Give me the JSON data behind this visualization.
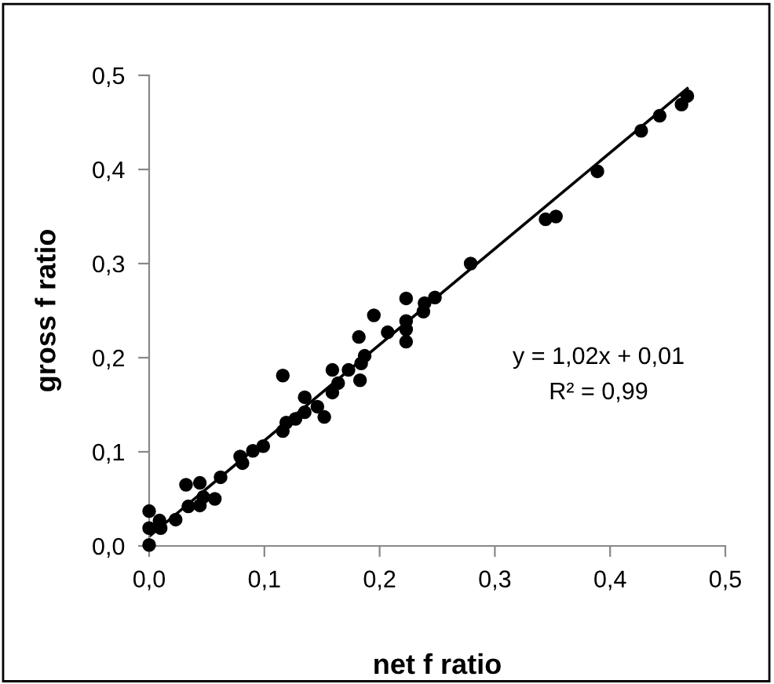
{
  "chart_data": {
    "type": "scatter",
    "xlabel": "net f ratio",
    "ylabel": "gross f ratio",
    "xlim": [
      0,
      0.5
    ],
    "ylim": [
      0,
      0.5
    ],
    "xticks": [
      {
        "value": 0,
        "label": "0,0"
      },
      {
        "value": 0.1,
        "label": "0,1"
      },
      {
        "value": 0.2,
        "label": "0,2"
      },
      {
        "value": 0.3,
        "label": "0,3"
      },
      {
        "value": 0.4,
        "label": "0,4"
      },
      {
        "value": 0.5,
        "label": "0,5"
      }
    ],
    "yticks": [
      {
        "value": 0,
        "label": "0,0"
      },
      {
        "value": 0.1,
        "label": "0,1"
      },
      {
        "value": 0.2,
        "label": "0,2"
      },
      {
        "value": 0.3,
        "label": "0,3"
      },
      {
        "value": 0.4,
        "label": "0,4"
      },
      {
        "value": 0.5,
        "label": "0,5"
      }
    ],
    "grid": false,
    "legend": false,
    "marker": "circle",
    "annotations": [
      "y = 1,02x + 0,01",
      "R² = 0,99"
    ],
    "series": [
      {
        "color": "#000000",
        "x": [
          0,
          0,
          0,
          0.009,
          0.01,
          0.023,
          0.032,
          0.034,
          0.044,
          0.044,
          0.047,
          0.057,
          0.062,
          0.079,
          0.081,
          0.09,
          0.099,
          0.116,
          0.116,
          0.119,
          0.127,
          0.135,
          0.135,
          0.146,
          0.152,
          0.159,
          0.159,
          0.164,
          0.173,
          0.182,
          0.183,
          0.184,
          0.187,
          0.195,
          0.207,
          0.223,
          0.223,
          0.223,
          0.223,
          0.238,
          0.239,
          0.248,
          0.279,
          0.344,
          0.353,
          0.389,
          0.427,
          0.443,
          0.462,
          0.467
        ],
        "values": [
          0.001,
          0.019,
          0.037,
          0.027,
          0.019,
          0.028,
          0.065,
          0.042,
          0.067,
          0.043,
          0.052,
          0.05,
          0.073,
          0.095,
          0.088,
          0.101,
          0.106,
          0.122,
          0.181,
          0.131,
          0.135,
          0.158,
          0.142,
          0.148,
          0.137,
          0.187,
          0.163,
          0.173,
          0.187,
          0.222,
          0.176,
          0.194,
          0.202,
          0.245,
          0.227,
          0.263,
          0.239,
          0.23,
          0.217,
          0.249,
          0.258,
          0.264,
          0.3,
          0.347,
          0.35,
          0.398,
          0.441,
          0.457,
          0.469,
          0.478
        ]
      },
      {
        "type": "line",
        "color": "#000000",
        "marker": "none",
        "line_style": "solid",
        "x": [
          0,
          0.467
        ],
        "values": [
          0.01,
          0.486
        ]
      }
    ]
  }
}
